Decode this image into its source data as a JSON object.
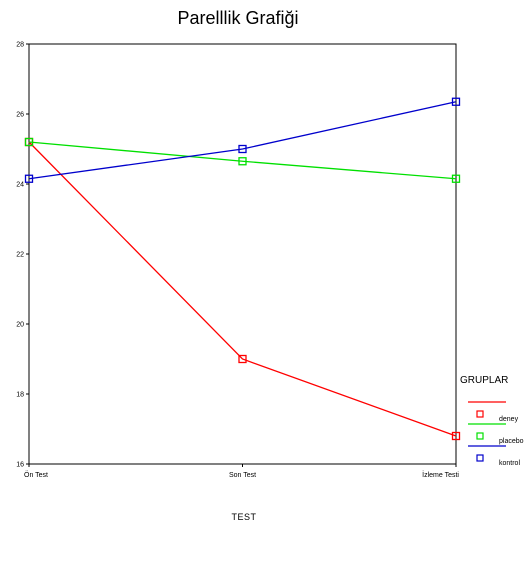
{
  "chart_data": {
    "type": "line",
    "title": "Parelllik Grafiği",
    "xlabel": "TEST",
    "ylabel": "",
    "categories": [
      "Ön Test",
      "Son Test",
      "İzleme Testi"
    ],
    "ylim": [
      16,
      28
    ],
    "yticks": [
      16,
      18,
      20,
      22,
      24,
      26,
      28
    ],
    "grid": false,
    "legend": {
      "title": "GRUPLAR",
      "placement": "right"
    },
    "series": [
      {
        "name": "deney",
        "values": [
          25.2,
          19.0,
          16.8
        ],
        "color": "#ff0000"
      },
      {
        "name": "placebo",
        "values": [
          25.2,
          24.65,
          24.15
        ],
        "color": "#00e000"
      },
      {
        "name": "kontrol",
        "values": [
          24.15,
          25.0,
          26.35
        ],
        "color": "#0000cc"
      }
    ]
  }
}
